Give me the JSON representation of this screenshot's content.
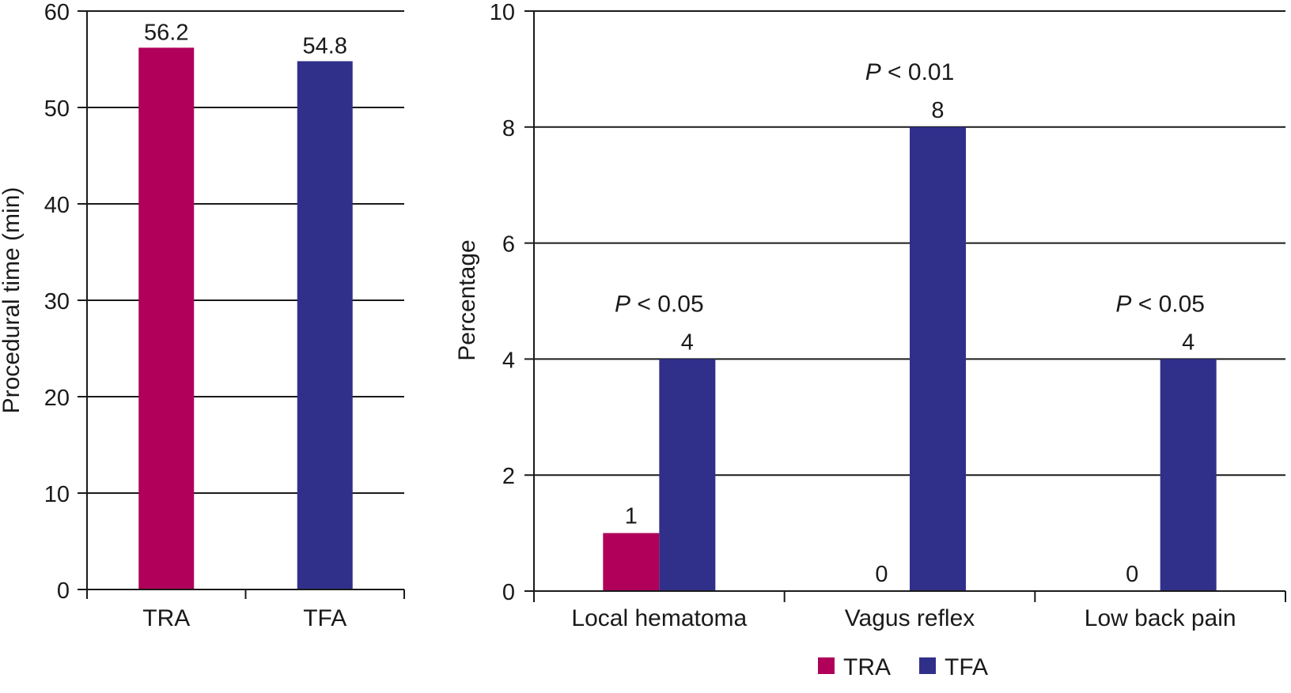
{
  "colors": {
    "TRA": "#B0005A",
    "TFA": "#30308A",
    "axis": "#1a1a1a"
  },
  "chart_data": [
    {
      "type": "bar",
      "title": "",
      "xlabel": "",
      "ylabel": "Procedural time (min)",
      "ylim": [
        0,
        60
      ],
      "yticks": [
        0,
        10,
        20,
        30,
        40,
        50,
        60
      ],
      "ytick_labels": [
        "0",
        "10",
        "20",
        "30",
        "40",
        "50",
        "60"
      ],
      "grid": true,
      "categories": [
        "TRA",
        "TFA"
      ],
      "series": [
        {
          "name": "Procedural time",
          "values": [
            56.2,
            54.8
          ],
          "colors": [
            "#B0005A",
            "#30308A"
          ],
          "labels": [
            "56.2",
            "54.8"
          ]
        }
      ]
    },
    {
      "type": "bar",
      "title": "",
      "xlabel": "",
      "ylabel": "Percentage",
      "ylim": [
        0,
        10
      ],
      "yticks": [
        0,
        2,
        4,
        6,
        8,
        10
      ],
      "ytick_labels": [
        "0",
        "2",
        "4",
        "6",
        "8",
        "10"
      ],
      "grid": true,
      "categories": [
        "Local hematoma",
        "Vagus reflex",
        "Low back pain"
      ],
      "series": [
        {
          "name": "TRA",
          "values": [
            1,
            0,
            0
          ],
          "labels": [
            "1",
            "0",
            "0"
          ]
        },
        {
          "name": "TFA",
          "values": [
            4,
            8,
            4
          ],
          "labels": [
            "4",
            "8",
            "4"
          ]
        }
      ],
      "annotations": [
        {
          "category": "Local hematoma",
          "p_symbol": "P",
          "text": " < 0.05"
        },
        {
          "category": "Vagus reflex",
          "p_symbol": "P",
          "text": " < 0.01"
        },
        {
          "category": "Low back pain",
          "p_symbol": "P",
          "text": " < 0.05"
        }
      ],
      "legend": {
        "placement": "bottom",
        "entries": [
          "TRA",
          "TFA"
        ]
      }
    }
  ]
}
